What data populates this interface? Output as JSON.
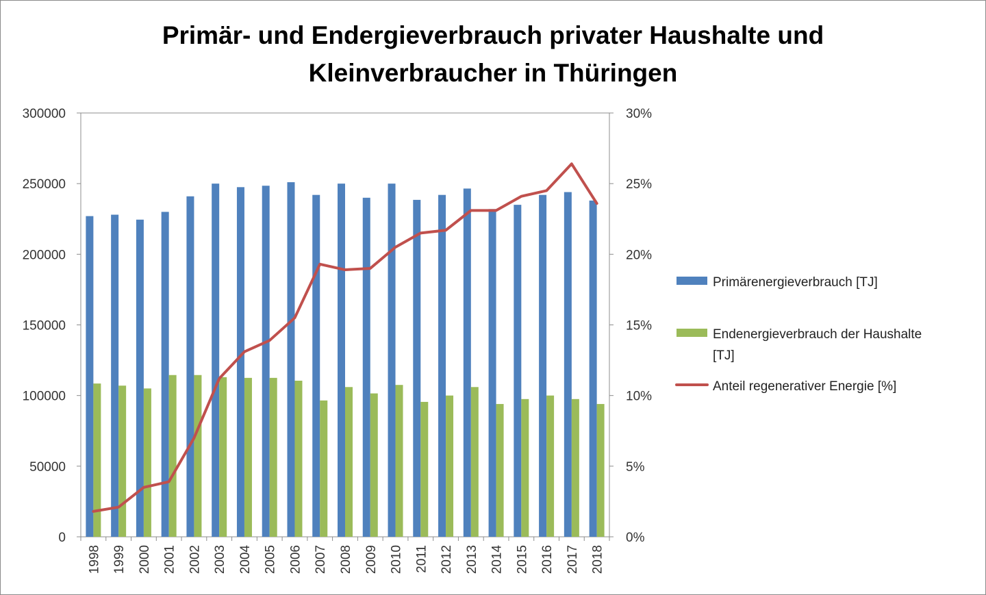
{
  "chart_data": {
    "type": "bar",
    "title": [
      "Primär- und Endergieverbrauch privater Haushalte und",
      "Kleinverbraucher in Thüringen"
    ],
    "categories": [
      "1998",
      "1999",
      "2000",
      "2001",
      "2002",
      "2003",
      "2004",
      "2005",
      "2006",
      "2007",
      "2008",
      "2009",
      "2010",
      "2011",
      "2012",
      "2013",
      "2014",
      "2015",
      "2016",
      "2017",
      "2018"
    ],
    "series": [
      {
        "name": "Primärenergieverbrauch [TJ]",
        "kind": "bar",
        "axis": "left",
        "color": "#4f81bd",
        "values": [
          227000,
          228000,
          224500,
          230000,
          241000,
          250000,
          247500,
          248500,
          251000,
          242000,
          250000,
          240000,
          250000,
          238500,
          242000,
          246500,
          232000,
          235000,
          242000,
          244000,
          238000
        ]
      },
      {
        "name": "Endenergieverbrauch der Haushalte [TJ]",
        "kind": "bar",
        "axis": "left",
        "color": "#9bbb59",
        "values": [
          108500,
          107000,
          105000,
          114500,
          114500,
          113000,
          112500,
          112500,
          110500,
          96500,
          106000,
          101500,
          107500,
          95500,
          100000,
          106000,
          94000,
          97500,
          100000,
          97500,
          94000
        ]
      },
      {
        "name": "Anteil regenerativer Energie [%]",
        "kind": "line",
        "axis": "right",
        "color": "#c0504d",
        "values": [
          1.8,
          2.1,
          3.5,
          3.9,
          7.0,
          11.2,
          13.1,
          13.9,
          15.5,
          19.3,
          18.9,
          19.0,
          20.5,
          21.5,
          21.7,
          23.1,
          23.1,
          24.1,
          24.5,
          26.4,
          23.6
        ]
      }
    ],
    "left_axis": {
      "min": 0,
      "max": 300000,
      "step": 50000,
      "ticks": [
        "0",
        "50000",
        "100000",
        "150000",
        "200000",
        "250000",
        "300000"
      ]
    },
    "right_axis": {
      "min": 0,
      "max": 30,
      "step": 5,
      "ticks": [
        "0%",
        "5%",
        "10%",
        "15%",
        "20%",
        "25%",
        "30%"
      ]
    },
    "legend": [
      {
        "label_lines": [
          "Primärenergieverbrauch [TJ]"
        ],
        "symbol": "bar",
        "color": "#4f81bd"
      },
      {
        "label_lines": [
          "Endenergieverbrauch der Haushalte",
          "[TJ]"
        ],
        "symbol": "bar",
        "color": "#9bbb59"
      },
      {
        "label_lines": [
          "Anteil regenerativer Energie [%]"
        ],
        "symbol": "line",
        "color": "#c0504d"
      }
    ],
    "legend_position": "right",
    "grid": false
  }
}
